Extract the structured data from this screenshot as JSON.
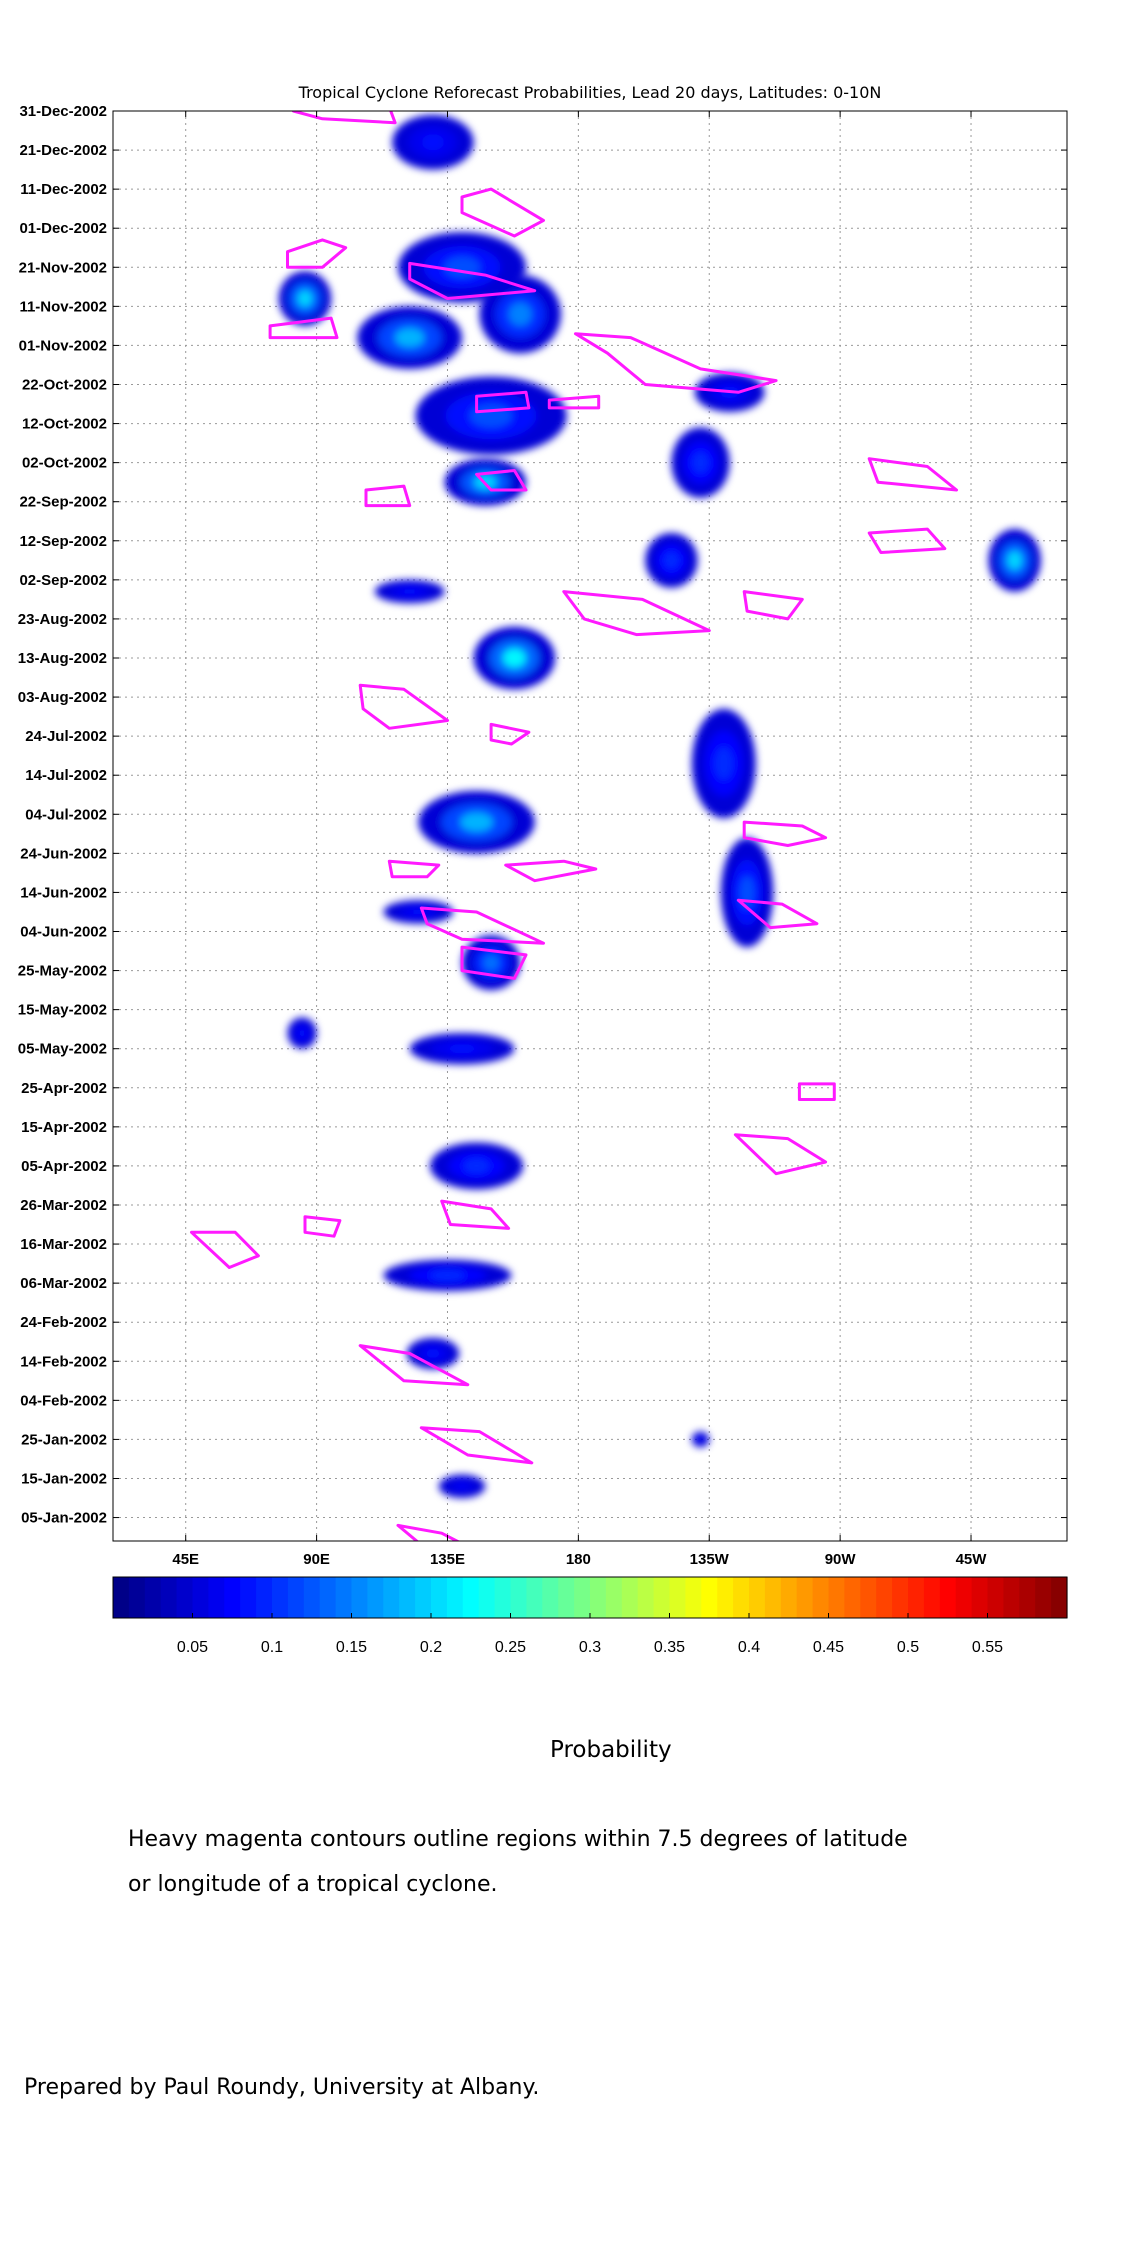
{
  "chart_data": {
    "type": "heatmap",
    "title": "Tropical Cyclone Reforecast Probabilities, Lead 20 days, Latitudes: 0-10N",
    "ytick_labels": [
      "31-Dec-2002",
      "21-Dec-2002",
      "11-Dec-2002",
      "01-Dec-2002",
      "21-Nov-2002",
      "11-Nov-2002",
      "01-Nov-2002",
      "22-Oct-2002",
      "12-Oct-2002",
      "02-Oct-2002",
      "22-Sep-2002",
      "12-Sep-2002",
      "02-Sep-2002",
      "23-Aug-2002",
      "13-Aug-2002",
      "03-Aug-2002",
      "24-Jul-2002",
      "14-Jul-2002",
      "04-Jul-2002",
      "24-Jun-2002",
      "14-Jun-2002",
      "04-Jun-2002",
      "25-May-2002",
      "15-May-2002",
      "05-May-2002",
      "25-Apr-2002",
      "15-Apr-2002",
      "05-Apr-2002",
      "26-Mar-2002",
      "16-Mar-2002",
      "06-Mar-2002",
      "24-Feb-2002",
      "14-Feb-2002",
      "04-Feb-2002",
      "25-Jan-2002",
      "15-Jan-2002",
      "05-Jan-2002"
    ],
    "xtick_labels": [
      "45E",
      "90E",
      "135E",
      "180",
      "135W",
      "90W",
      "45W"
    ],
    "xtick_lon": [
      45,
      90,
      135,
      180,
      225,
      270,
      315
    ],
    "xlim": [
      20,
      348
    ],
    "ylim_days_before_end": [
      366,
      0
    ],
    "grid": true,
    "colorbar": {
      "label": "Probability",
      "range": [
        0,
        0.6
      ],
      "ticks": [
        0.05,
        0.1,
        0.15,
        0.2,
        0.25,
        0.3,
        0.35,
        0.4,
        0.45,
        0.5,
        0.55
      ],
      "tick_labels": [
        "0.05",
        "0.1",
        "0.15",
        "0.2",
        "0.25",
        "0.3",
        "0.35",
        "0.4",
        "0.45",
        "0.5",
        "0.55"
      ]
    },
    "probability_regions": [
      {
        "lon": 140,
        "days_before_end": 40,
        "probability": 0.12,
        "lon_spread": 22,
        "day_spread": 9
      },
      {
        "lon": 122,
        "days_before_end": 58,
        "probability": 0.18,
        "lon_spread": 18,
        "day_spread": 8
      },
      {
        "lon": 160,
        "days_before_end": 52,
        "probability": 0.15,
        "lon_spread": 14,
        "day_spread": 10
      },
      {
        "lon": 86,
        "days_before_end": 48,
        "probability": 0.2,
        "lon_spread": 9,
        "day_spread": 7
      },
      {
        "lon": 150,
        "days_before_end": 78,
        "probability": 0.12,
        "lon_spread": 26,
        "day_spread": 10
      },
      {
        "lon": 148,
        "days_before_end": 95,
        "probability": 0.2,
        "lon_spread": 14,
        "day_spread": 6
      },
      {
        "lon": 130,
        "days_before_end": 8,
        "probability": 0.08,
        "lon_spread": 14,
        "day_spread": 7
      },
      {
        "lon": 222,
        "days_before_end": 90,
        "probability": 0.1,
        "lon_spread": 10,
        "day_spread": 9
      },
      {
        "lon": 232,
        "days_before_end": 72,
        "probability": 0.08,
        "lon_spread": 12,
        "day_spread": 5
      },
      {
        "lon": 330,
        "days_before_end": 115,
        "probability": 0.2,
        "lon_spread": 9,
        "day_spread": 8
      },
      {
        "lon": 158,
        "days_before_end": 140,
        "probability": 0.22,
        "lon_spread": 14,
        "day_spread": 8
      },
      {
        "lon": 122,
        "days_before_end": 123,
        "probability": 0.08,
        "lon_spread": 12,
        "day_spread": 3
      },
      {
        "lon": 212,
        "days_before_end": 115,
        "probability": 0.1,
        "lon_spread": 9,
        "day_spread": 7
      },
      {
        "lon": 230,
        "days_before_end": 167,
        "probability": 0.1,
        "lon_spread": 11,
        "day_spread": 14
      },
      {
        "lon": 145,
        "days_before_end": 182,
        "probability": 0.18,
        "lon_spread": 20,
        "day_spread": 8
      },
      {
        "lon": 238,
        "days_before_end": 200,
        "probability": 0.12,
        "lon_spread": 9,
        "day_spread": 14
      },
      {
        "lon": 150,
        "days_before_end": 218,
        "probability": 0.14,
        "lon_spread": 10,
        "day_spread": 7
      },
      {
        "lon": 125,
        "days_before_end": 205,
        "probability": 0.08,
        "lon_spread": 12,
        "day_spread": 3
      },
      {
        "lon": 140,
        "days_before_end": 240,
        "probability": 0.08,
        "lon_spread": 18,
        "day_spread": 4
      },
      {
        "lon": 145,
        "days_before_end": 270,
        "probability": 0.1,
        "lon_spread": 16,
        "day_spread": 6
      },
      {
        "lon": 85,
        "days_before_end": 236,
        "probability": 0.08,
        "lon_spread": 5,
        "day_spread": 4
      },
      {
        "lon": 135,
        "days_before_end": 298,
        "probability": 0.1,
        "lon_spread": 22,
        "day_spread": 4
      },
      {
        "lon": 130,
        "days_before_end": 318,
        "probability": 0.08,
        "lon_spread": 9,
        "day_spread": 4
      },
      {
        "lon": 222,
        "days_before_end": 340,
        "probability": 0.07,
        "lon_spread": 3,
        "day_spread": 2
      },
      {
        "lon": 140,
        "days_before_end": 352,
        "probability": 0.07,
        "lon_spread": 8,
        "day_spread": 3
      }
    ],
    "cyclone_contours": [
      [
        [
          82,
          0
        ],
        [
          88,
          -2
        ],
        [
          115,
          -1
        ],
        [
          117,
          3
        ],
        [
          92,
          2
        ]
      ],
      [
        [
          140,
          22
        ],
        [
          150,
          20
        ],
        [
          168,
          28
        ],
        [
          158,
          32
        ],
        [
          140,
          26
        ]
      ],
      [
        [
          80,
          36
        ],
        [
          92,
          33
        ],
        [
          100,
          35
        ],
        [
          92,
          40
        ],
        [
          80,
          40
        ]
      ],
      [
        [
          122,
          39
        ],
        [
          148,
          42
        ],
        [
          165,
          46
        ],
        [
          135,
          48
        ],
        [
          122,
          43
        ]
      ],
      [
        [
          74,
          55
        ],
        [
          95,
          53
        ],
        [
          97,
          58
        ],
        [
          74,
          58
        ]
      ],
      [
        [
          179,
          57
        ],
        [
          198,
          58
        ],
        [
          222,
          66
        ],
        [
          248,
          69
        ],
        [
          235,
          72
        ],
        [
          203,
          70
        ],
        [
          190,
          62
        ]
      ],
      [
        [
          145,
          73
        ],
        [
          162,
          72
        ],
        [
          163,
          76
        ],
        [
          145,
          77
        ]
      ],
      [
        [
          170,
          74
        ],
        [
          187,
          73
        ],
        [
          187,
          76
        ],
        [
          170,
          76
        ]
      ],
      [
        [
          145,
          93
        ],
        [
          158,
          92
        ],
        [
          162,
          97
        ],
        [
          150,
          97
        ]
      ],
      [
        [
          107,
          97
        ],
        [
          120,
          96
        ],
        [
          122,
          101
        ],
        [
          107,
          101
        ]
      ],
      [
        [
          280,
          89
        ],
        [
          300,
          91
        ],
        [
          310,
          97
        ],
        [
          283,
          95
        ]
      ],
      [
        [
          280,
          108
        ],
        [
          300,
          107
        ],
        [
          306,
          112
        ],
        [
          284,
          113
        ]
      ],
      [
        [
          175,
          123
        ],
        [
          202,
          125
        ],
        [
          225,
          133
        ],
        [
          200,
          134
        ],
        [
          182,
          130
        ]
      ],
      [
        [
          237,
          123
        ],
        [
          257,
          125
        ],
        [
          252,
          130
        ],
        [
          238,
          128
        ]
      ],
      [
        [
          105,
          147
        ],
        [
          120,
          148
        ],
        [
          135,
          156
        ],
        [
          115,
          158
        ],
        [
          106,
          153
        ]
      ],
      [
        [
          150,
          157
        ],
        [
          163,
          159
        ],
        [
          157,
          162
        ],
        [
          150,
          161
        ]
      ],
      [
        [
          237,
          182
        ],
        [
          257,
          183
        ],
        [
          265,
          186
        ],
        [
          252,
          188
        ],
        [
          237,
          186
        ]
      ],
      [
        [
          115,
          192
        ],
        [
          132,
          193
        ],
        [
          128,
          196
        ],
        [
          116,
          196
        ]
      ],
      [
        [
          155,
          193
        ],
        [
          175,
          192
        ],
        [
          186,
          194
        ],
        [
          165,
          197
        ]
      ],
      [
        [
          126,
          204
        ],
        [
          145,
          205
        ],
        [
          168,
          213
        ],
        [
          140,
          212
        ],
        [
          128,
          208
        ]
      ],
      [
        [
          140,
          214
        ],
        [
          162,
          216
        ],
        [
          158,
          222
        ],
        [
          140,
          220
        ]
      ],
      [
        [
          235,
          202
        ],
        [
          250,
          203
        ],
        [
          262,
          208
        ],
        [
          246,
          209
        ]
      ],
      [
        [
          256,
          249
        ],
        [
          268,
          249
        ],
        [
          268,
          253
        ],
        [
          256,
          253
        ]
      ],
      [
        [
          234,
          262
        ],
        [
          252,
          263
        ],
        [
          265,
          269
        ],
        [
          248,
          272
        ]
      ],
      [
        [
          133,
          279
        ],
        [
          150,
          281
        ],
        [
          156,
          286
        ],
        [
          136,
          285
        ]
      ],
      [
        [
          47,
          287
        ],
        [
          62,
          287
        ],
        [
          70,
          293
        ],
        [
          60,
          296
        ]
      ],
      [
        [
          86,
          283
        ],
        [
          98,
          284
        ],
        [
          96,
          288
        ],
        [
          86,
          287
        ]
      ],
      [
        [
          105,
          316
        ],
        [
          122,
          318
        ],
        [
          142,
          326
        ],
        [
          120,
          325
        ]
      ],
      [
        [
          126,
          337
        ],
        [
          146,
          338
        ],
        [
          164,
          346
        ],
        [
          142,
          344
        ]
      ],
      [
        [
          118,
          362
        ],
        [
          133,
          364
        ],
        [
          146,
          369
        ],
        [
          126,
          367
        ]
      ]
    ]
  },
  "captions": {
    "colorbar_title": "Probability",
    "note_line1": "Heavy magenta contours outline regions within 7.5 degrees of latitude",
    "note_line2": "or longitude of a tropical cyclone.",
    "credit": "Prepared by Paul Roundy, University at Albany."
  }
}
